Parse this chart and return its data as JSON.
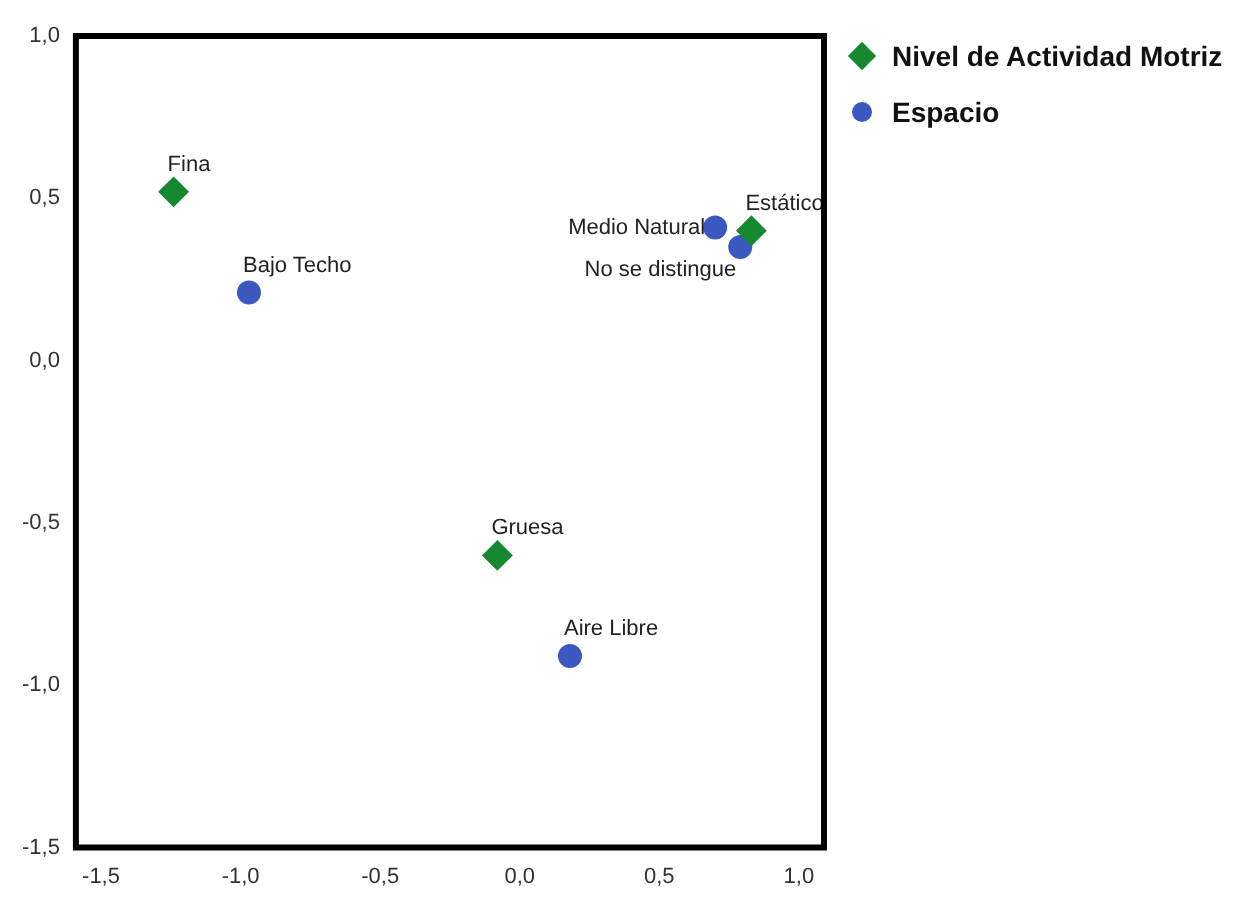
{
  "chart_data": {
    "type": "scatter",
    "series": [
      {
        "name": "Nivel de Actividad Motriz",
        "color": "#16882f",
        "marker": "diamond",
        "x": [
          -1.24,
          -0.08,
          0.83
        ],
        "values": [
          0.52,
          -0.6,
          0.4
        ]
      },
      {
        "name": "Espacio",
        "color": "#3a58c0",
        "marker": "circle",
        "x": [
          -0.97,
          0.18,
          0.7,
          0.79
        ],
        "values": [
          0.21,
          -0.91,
          0.41,
          0.35
        ]
      }
    ],
    "annotations": [
      {
        "text": "Fina",
        "x": -1.24,
        "y": 0.52
      },
      {
        "text": "Gruesa",
        "x": -0.08,
        "y": -0.6
      },
      {
        "text": "Estático",
        "x": 0.83,
        "y": 0.4
      },
      {
        "text": "Bajo Techo",
        "x": -0.97,
        "y": 0.21
      },
      {
        "text": "Aire Libre",
        "x": 0.18,
        "y": -0.91
      },
      {
        "text": "Medio Natural",
        "x": 0.7,
        "y": 0.41
      },
      {
        "text": "No se distingue",
        "x": 0.79,
        "y": 0.35
      }
    ],
    "xlim": [
      -1.59,
      1.09
    ],
    "ylim": [
      -1.5,
      1.0
    ],
    "xticks": [
      {
        "value": -1.5,
        "label": "-1,5"
      },
      {
        "value": -1.0,
        "label": "-1,0"
      },
      {
        "value": -0.5,
        "label": "-0,5"
      },
      {
        "value": 0,
        "label": "0,0"
      },
      {
        "value": 0.5,
        "label": "0,5"
      },
      {
        "value": 1.0,
        "label": "1,0"
      }
    ],
    "yticks": [
      {
        "value": -1.5,
        "label": "-1,5"
      },
      {
        "value": -1.0,
        "label": "-1,0"
      },
      {
        "value": -0.5,
        "label": "-0,5"
      },
      {
        "value": 0,
        "label": "0,0"
      },
      {
        "value": 0.5,
        "label": "0,5"
      },
      {
        "value": 1.0,
        "label": "1,0"
      }
    ],
    "grid": false,
    "legend": "top right"
  }
}
